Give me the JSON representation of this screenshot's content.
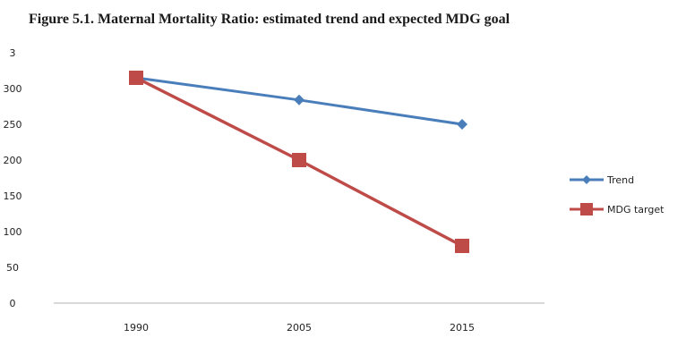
{
  "page": {
    "title": "Figure 5.1.  Maternal Mortality Ratio: estimated trend and expected MDG goal"
  },
  "chart_data": {
    "type": "line",
    "title": "Figure 5.1.  Maternal Mortality Ratio: estimated trend and expected MDG goal",
    "xlabel": "",
    "ylabel": "",
    "y_axis_top_label": "3",
    "categories": [
      "1990",
      "2005",
      "2015"
    ],
    "ylim": [
      0,
      320
    ],
    "yticks": [
      "0",
      "50",
      "100",
      "150",
      "200",
      "250",
      "300"
    ],
    "grid": false,
    "legend_position": "right",
    "series": [
      {
        "name": "Trend",
        "values": [
          315,
          284,
          250
        ],
        "color": "#4a7ebb",
        "marker": "diamond"
      },
      {
        "name": "MDG target",
        "values": [
          315,
          200,
          80
        ],
        "color": "#be4b48",
        "marker": "square"
      }
    ]
  }
}
